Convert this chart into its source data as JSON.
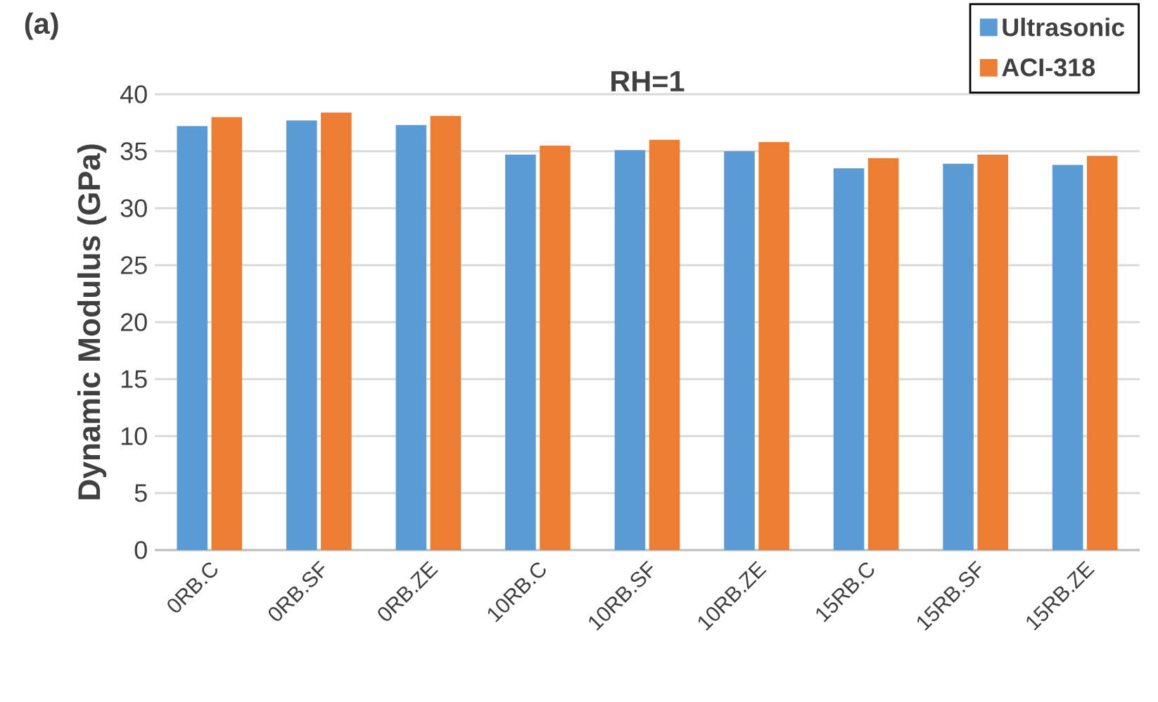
{
  "chart_data": {
    "type": "bar",
    "title": "RH=1",
    "annotations": [
      "(a)"
    ],
    "ylabel": "Dynamic Modulus (GPa)",
    "categories": [
      "0RB.C",
      "0RB.SF",
      "0RB.ZE",
      "10RB.C",
      "10RB.SF",
      "10RB.ZE",
      "15RB.C",
      "15RB.SF",
      "15RB.ZE"
    ],
    "series": [
      {
        "name": "Ultrasonic",
        "color": "#5b9bd5",
        "values": [
          37.2,
          37.7,
          37.3,
          34.7,
          35.1,
          35.0,
          33.5,
          33.9,
          33.8
        ]
      },
      {
        "name": "ACI-318",
        "color": "#ed7d31",
        "values": [
          38.0,
          38.4,
          38.1,
          35.5,
          36.0,
          35.8,
          34.4,
          34.7,
          34.6
        ]
      }
    ],
    "ylim": [
      0,
      40
    ],
    "yticks": [
      0,
      5,
      10,
      15,
      20,
      25,
      30,
      35,
      40
    ],
    "grid": "y",
    "legend": "top right"
  }
}
